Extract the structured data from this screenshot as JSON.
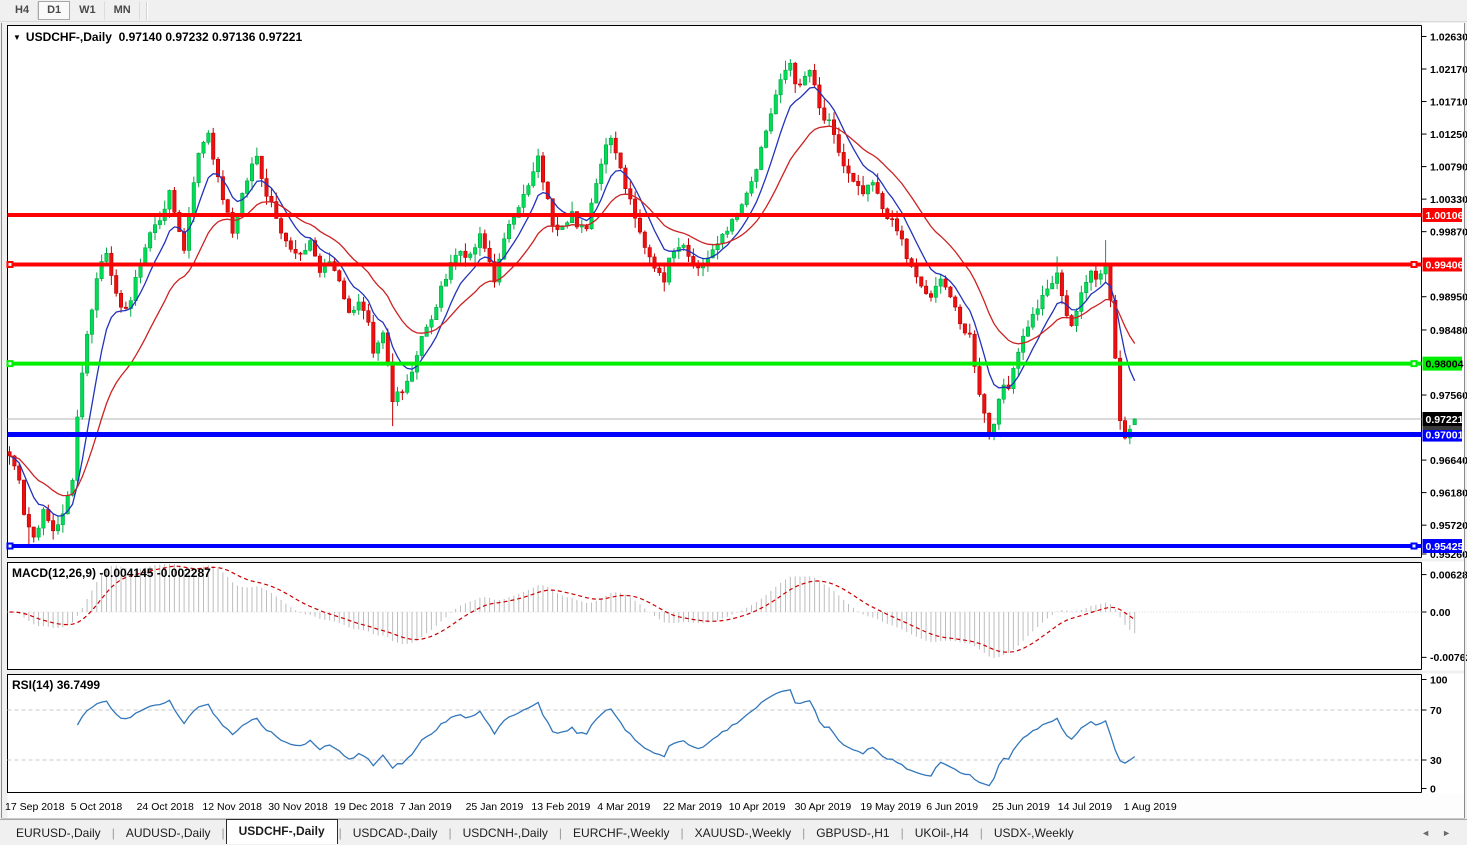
{
  "toolbar": {
    "buttons": [
      {
        "label": "H4",
        "active": false
      },
      {
        "label": "D1",
        "active": true
      },
      {
        "label": "W1",
        "active": false
      },
      {
        "label": "MN",
        "active": false
      }
    ]
  },
  "icons": {
    "symbol_dropdown": "▼",
    "tab_scroll_left": "◄",
    "tab_scroll_right": "►"
  },
  "chart": {
    "type": "candlestick-ohlc",
    "title": {
      "symbol": "USDCHF-,Daily",
      "ohlc": "0.97140 0.97232 0.97136 0.97221"
    },
    "current_price": {
      "label": "0.97221",
      "price": 0.97221,
      "line_color": "#b4b4b4",
      "box_color": "#000000",
      "text_color": "#ffffff"
    },
    "last_candle": {
      "o": 0.9714,
      "h": 0.97232,
      "l": 0.97136,
      "c": 0.97221
    },
    "axis_ticks": [
      "1.02630",
      "1.02170",
      "1.01710",
      "1.01250",
      "1.00790",
      "1.00330",
      "0.99870",
      "0.98950",
      "0.98480",
      "0.97560",
      "0.96640",
      "0.96180",
      "0.95720",
      "0.95260"
    ],
    "horizontal_lines": [
      {
        "label": "1.00106",
        "price": 1.00106,
        "color": "#ff0000",
        "text_color": "#ffffff",
        "thickness": 4,
        "selected": false
      },
      {
        "label": "0.99406",
        "price": 0.99406,
        "color": "#ff0000",
        "text_color": "#ffffff",
        "thickness": 4,
        "selected": true
      },
      {
        "label": "0.98004",
        "price": 0.98004,
        "color": "#00ee00",
        "text_color": "#000000",
        "thickness": 4,
        "selected": true
      },
      {
        "label": "0.97001",
        "price": 0.97001,
        "color": "#0000ff",
        "text_color": "#ffffff",
        "thickness": 5,
        "selected": false
      },
      {
        "label": "0.95425",
        "price": 0.95425,
        "color": "#0000ff",
        "text_color": "#ffffff",
        "thickness": 4,
        "selected": true
      }
    ],
    "candle_colors": {
      "up_fill": "#00dc55",
      "up_stroke": "#00a843",
      "down_fill": "#ec1010",
      "down_stroke": "#c00000"
    },
    "moving_averages": [
      {
        "name": "fast-ma",
        "period": 8,
        "color": "#2233bb"
      },
      {
        "name": "slow-ma",
        "period": 21,
        "color": "#cc2222"
      }
    ],
    "price_anchors": [
      [
        0,
        0.967
      ],
      [
        2,
        0.964
      ],
      [
        3,
        0.959
      ],
      [
        4,
        0.957
      ],
      [
        5,
        0.9555
      ],
      [
        7,
        0.959
      ],
      [
        9,
        0.9565
      ],
      [
        11,
        0.9585
      ],
      [
        13,
        0.964
      ],
      [
        14,
        0.9725
      ],
      [
        15,
        0.979
      ],
      [
        16,
        0.984
      ],
      [
        17,
        0.988
      ],
      [
        18,
        0.992
      ],
      [
        19,
        0.9945
      ],
      [
        20,
        0.996
      ],
      [
        21,
        0.993
      ],
      [
        22,
        0.9895
      ],
      [
        23,
        0.9875
      ],
      [
        25,
        0.989
      ],
      [
        27,
        0.9945
      ],
      [
        29,
        0.9985
      ],
      [
        31,
        1.0005
      ],
      [
        33,
        1.004
      ],
      [
        35,
        0.999
      ],
      [
        36,
        0.996
      ],
      [
        37,
        1.001
      ],
      [
        38,
        1.006
      ],
      [
        39,
        1.0095
      ],
      [
        40,
        1.0115
      ],
      [
        41,
        1.0128
      ],
      [
        43,
        1.006
      ],
      [
        45,
        1.001
      ],
      [
        46,
        0.9985
      ],
      [
        48,
        1.004
      ],
      [
        50,
        1.008
      ],
      [
        51,
        1.0092
      ],
      [
        53,
        1.004
      ],
      [
        54,
        1.003
      ],
      [
        56,
        0.999
      ],
      [
        58,
        0.996
      ],
      [
        60,
        0.995
      ],
      [
        62,
        0.9975
      ],
      [
        64,
        0.993
      ],
      [
        66,
        0.9945
      ],
      [
        68,
        0.992
      ],
      [
        70,
        0.987
      ],
      [
        72,
        0.989
      ],
      [
        74,
        0.9855
      ],
      [
        75,
        0.981
      ],
      [
        77,
        0.984
      ],
      [
        78,
        0.98
      ],
      [
        79,
        0.9745
      ],
      [
        80,
        0.976
      ],
      [
        81,
        0.9765
      ],
      [
        83,
        0.979
      ],
      [
        85,
        0.984
      ],
      [
        87,
        0.986
      ],
      [
        89,
        0.9905
      ],
      [
        91,
        0.9945
      ],
      [
        93,
        0.996
      ],
      [
        95,
        0.995
      ],
      [
        97,
        0.998
      ],
      [
        99,
        0.9945
      ],
      [
        100,
        0.992
      ],
      [
        101,
        0.9945
      ],
      [
        103,
        1.0
      ],
      [
        105,
        1.0025
      ],
      [
        107,
        1.005
      ],
      [
        108,
        1.007
      ],
      [
        109,
        1.009
      ],
      [
        110,
        1.006
      ],
      [
        111,
        1.003
      ],
      [
        112,
        1.0
      ],
      [
        113,
        0.9995
      ],
      [
        115,
        1.0005
      ],
      [
        116,
        1.0015
      ],
      [
        117,
        0.999
      ],
      [
        119,
        0.9995
      ],
      [
        121,
        1.006
      ],
      [
        123,
        1.011
      ],
      [
        124,
        1.0124
      ],
      [
        125,
        1.01
      ],
      [
        126,
        1.008
      ],
      [
        127,
        1.005
      ],
      [
        128,
        1.003
      ],
      [
        130,
        0.999
      ],
      [
        132,
        0.995
      ],
      [
        134,
        0.993
      ],
      [
        135,
        0.992
      ],
      [
        136,
        0.995
      ],
      [
        138,
        0.997
      ],
      [
        139,
        0.9965
      ],
      [
        141,
        0.994
      ],
      [
        143,
        0.9935
      ],
      [
        145,
        0.996
      ],
      [
        147,
        0.9985
      ],
      [
        149,
        1.0
      ],
      [
        151,
        1.003
      ],
      [
        153,
        1.006
      ],
      [
        154,
        1.008
      ],
      [
        156,
        1.013
      ],
      [
        158,
        1.018
      ],
      [
        160,
        1.0215
      ],
      [
        161,
        1.0226
      ],
      [
        162,
        1.02
      ],
      [
        163,
        1.019
      ],
      [
        164,
        1.0205
      ],
      [
        165,
        1.0215
      ],
      [
        166,
        1.019
      ],
      [
        167,
        1.016
      ],
      [
        168,
        1.0145
      ],
      [
        169,
        1.014
      ],
      [
        171,
        1.01
      ],
      [
        172,
        1.008
      ],
      [
        174,
        1.0055
      ],
      [
        176,
        1.004
      ],
      [
        178,
        1.0055
      ],
      [
        180,
        1.002
      ],
      [
        182,
        1.0
      ],
      [
        184,
        0.9975
      ],
      [
        185,
        0.995
      ],
      [
        187,
        0.992
      ],
      [
        189,
        0.99
      ],
      [
        190,
        0.989
      ],
      [
        192,
        0.9925
      ],
      [
        194,
        0.9895
      ],
      [
        196,
        0.9855
      ],
      [
        198,
        0.984
      ],
      [
        199,
        0.98
      ],
      [
        200,
        0.976
      ],
      [
        202,
        0.97
      ],
      [
        203,
        0.972
      ],
      [
        204,
        0.9745
      ],
      [
        205,
        0.977
      ],
      [
        206,
        0.977
      ],
      [
        208,
        0.982
      ],
      [
        210,
        0.9855
      ],
      [
        212,
        0.988
      ],
      [
        214,
        0.9905
      ],
      [
        216,
        0.9925
      ],
      [
        217,
        0.99
      ],
      [
        218,
        0.987
      ],
      [
        219,
        0.9855
      ],
      [
        220,
        0.987
      ],
      [
        221,
        0.99
      ],
      [
        222,
        0.992
      ],
      [
        223,
        0.9935
      ],
      [
        224,
        0.992
      ],
      [
        225,
        0.993
      ],
      [
        226,
        0.994
      ],
      [
        227,
        0.989
      ],
      [
        228,
        0.981
      ],
      [
        229,
        0.9725
      ],
      [
        230,
        0.97
      ],
      [
        231,
        0.9705
      ],
      [
        232,
        0.9722
      ]
    ],
    "wick_overrides": {
      "4": {
        "l": 0.9543
      },
      "79": {
        "l": 0.9712
      },
      "161": {
        "h": 1.0231
      },
      "202": {
        "l": 0.9693
      },
      "216": {
        "h": 0.9952
      },
      "226": {
        "h": 0.9975
      },
      "230": {
        "l": 0.9693
      }
    },
    "dates": [
      "17 Sep 2018",
      "5 Oct 2018",
      "24 Oct 2018",
      "12 Nov 2018",
      "30 Nov 2018",
      "19 Dec 2018",
      "7 Jan 2019",
      "25 Jan 2019",
      "13 Feb 2019",
      "4 Mar 2019",
      "22 Mar 2019",
      "10 Apr 2019",
      "30 Apr 2019",
      "19 May 2019",
      "6 Jun 2019",
      "25 Jun 2019",
      "14 Jul 2019",
      "1 Aug 2019"
    ]
  },
  "macd": {
    "title": "MACD(12,26,9)",
    "value_main": "-0.004145",
    "value_signal": "-0.002287",
    "params": [
      12,
      26,
      9
    ],
    "axis_ticks": [
      "0.006286",
      "0.00",
      "-0.00762"
    ],
    "histogram_color": "#bdbdbd",
    "signal_color": "#cc0000"
  },
  "rsi": {
    "title": "RSI(14)",
    "value": "36.7499",
    "period": 14,
    "axis_ticks": [
      "100",
      "70",
      "30",
      "0"
    ],
    "levels": [
      70,
      30
    ],
    "line_color": "#3377bb"
  },
  "tabs": {
    "active_index": 2,
    "items": [
      "EURUSD-,Daily",
      "AUDUSD-,Daily",
      "USDCHF-,Daily",
      "USDCAD-,Daily",
      "USDCNH-,Daily",
      "EURCHF-,Weekly",
      "XAUUSD-,Weekly",
      "GBPUSD-,H1",
      "UKOil-,H4",
      "USDX-,Weekly"
    ]
  }
}
